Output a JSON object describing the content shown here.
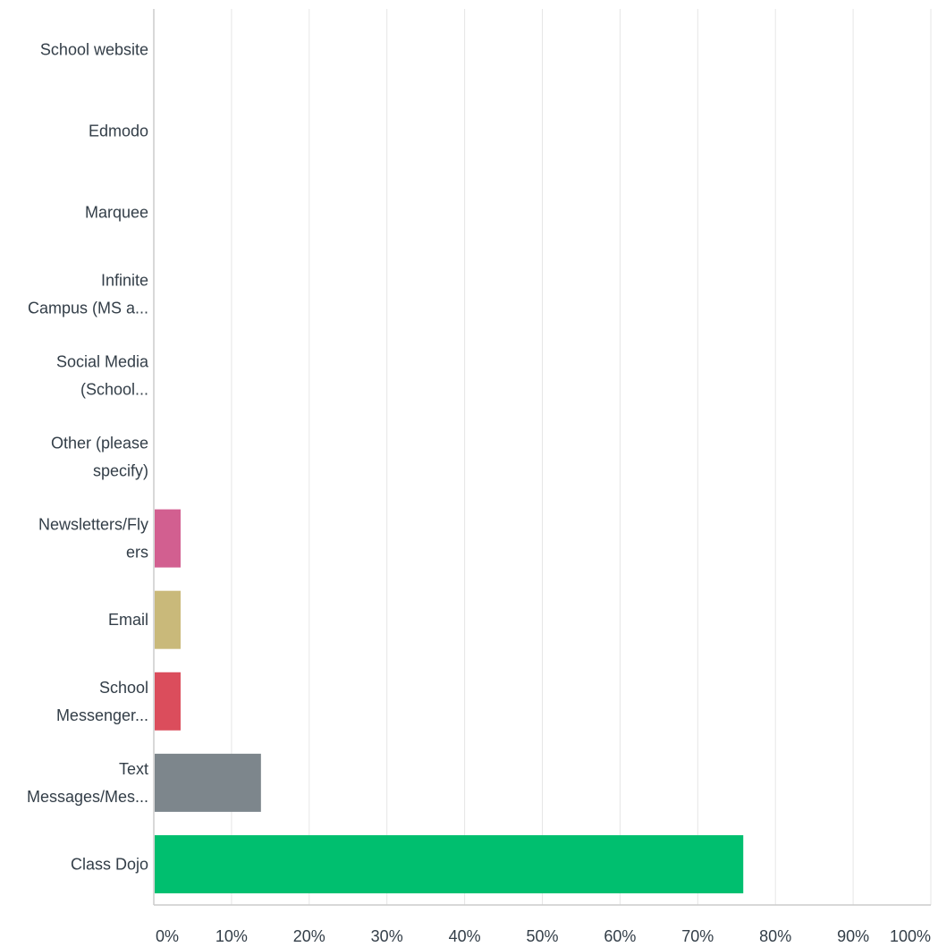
{
  "chart_data": {
    "type": "bar",
    "orientation": "horizontal",
    "title": "",
    "xlabel": "",
    "ylabel": "",
    "xlim": [
      0,
      100
    ],
    "grid": true,
    "legend": "none",
    "categories": [
      "School website",
      "Edmodo",
      "Marquee",
      "Infinite Campus (MS a...",
      "Social Media (School...",
      "Other (please specify)",
      "Newsletters/Flyers",
      "Email",
      "School Messenger...",
      "Text Messages/Mes...",
      "Class Dojo"
    ],
    "category_lines": [
      [
        "School website"
      ],
      [
        "Edmodo"
      ],
      [
        "Marquee"
      ],
      [
        "Infinite",
        "Campus (MS a..."
      ],
      [
        "Social Media",
        "(School..."
      ],
      [
        "Other (please",
        "specify)"
      ],
      [
        "Newsletters/Fly",
        "ers"
      ],
      [
        "Email"
      ],
      [
        "School",
        "Messenger..."
      ],
      [
        "Text",
        "Messages/Mes..."
      ],
      [
        "Class Dojo"
      ]
    ],
    "values": [
      0,
      0,
      0,
      0,
      0,
      0,
      3.45,
      3.45,
      3.45,
      13.79,
      75.86
    ],
    "bar_colors": [
      "#00bf6f",
      "#00bf6f",
      "#00bf6f",
      "#00bf6f",
      "#00bf6f",
      "#00bf6f",
      "#d25f90",
      "#c9b97a",
      "#db4d5c",
      "#7d868c",
      "#00bf6f"
    ],
    "x_ticks": [
      "0%",
      "10%",
      "20%",
      "30%",
      "40%",
      "50%",
      "60%",
      "70%",
      "80%",
      "90%",
      "100%"
    ]
  },
  "colors": {
    "grid": "#e6e6e6",
    "axis": "#cccccc",
    "text": "#333e48"
  }
}
